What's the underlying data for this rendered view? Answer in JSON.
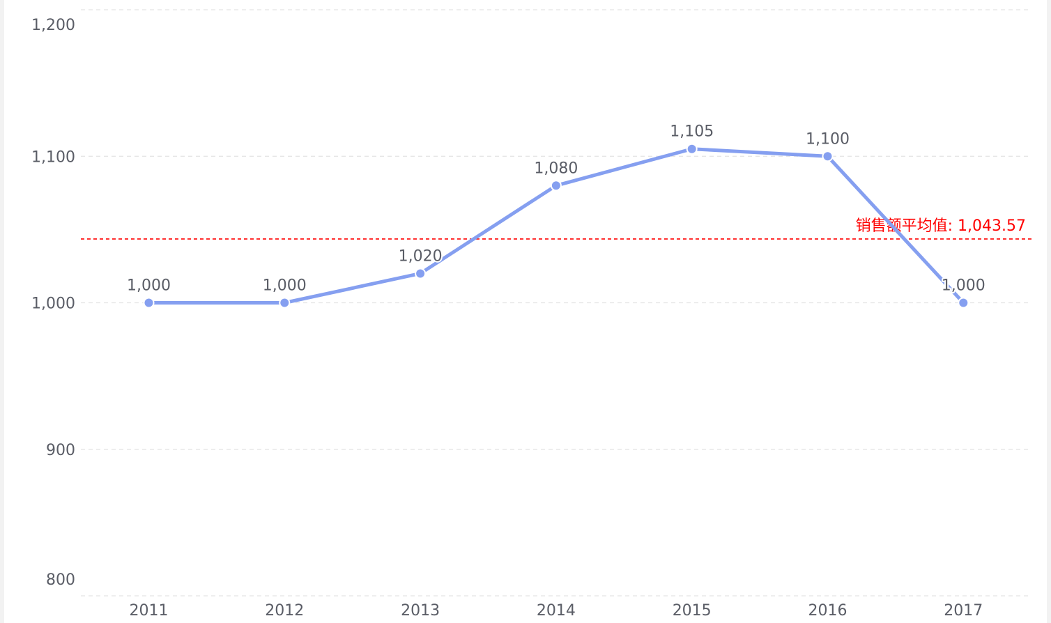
{
  "chart_data": {
    "type": "line",
    "title": "",
    "xlabel": "",
    "ylabel": "",
    "categories": [
      "2011",
      "2012",
      "2013",
      "2014",
      "2015",
      "2016",
      "2017"
    ],
    "series": [
      {
        "values": [
          1000,
          1000,
          1020,
          1080,
          1105,
          1100,
          1000
        ],
        "labels": [
          "1,000",
          "1,000",
          "1,020",
          "1,080",
          "1,105",
          "1,100",
          "1,000"
        ],
        "color": "#859ff0"
      }
    ],
    "y_ticks": [
      {
        "value": 800,
        "label": "800"
      },
      {
        "value": 900,
        "label": "900"
      },
      {
        "value": 1000,
        "label": "1,000"
      },
      {
        "value": 1100,
        "label": "1,100"
      },
      {
        "value": 1200,
        "label": "1,200"
      }
    ],
    "ylim": [
      800,
      1200
    ],
    "grid": true,
    "grid_color": "#e3e3e3",
    "average_line": {
      "value": 1043.57,
      "label": "销售额平均值: 1,043.57",
      "color": "#ff0000"
    }
  }
}
